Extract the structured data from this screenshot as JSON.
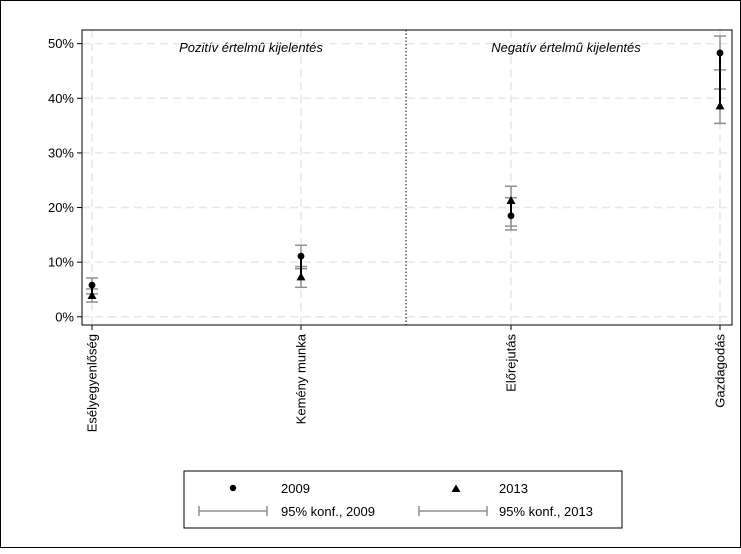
{
  "chart_data": {
    "type": "scatter",
    "categories": [
      "Esélyegyenlőség",
      "Kemény munka",
      "Előrejutás",
      "Gazdagodás"
    ],
    "panels": [
      {
        "label": "Pozitív értelmû kijelentés",
        "categories": [
          "Esélyegyenlőség",
          "Kemény munka"
        ]
      },
      {
        "label": "Negatív értelmû kijelentés",
        "categories": [
          "Előrejutás",
          "Gazdagodás"
        ]
      }
    ],
    "series": [
      {
        "name": "2009",
        "marker": "circle",
        "values": [
          5.8,
          11.1,
          18.5,
          48.3
        ],
        "ci_low": [
          4.2,
          8.8,
          16.6,
          45.2
        ],
        "ci_high": [
          7.1,
          13.1,
          21.8,
          51.4
        ]
      },
      {
        "name": "2013",
        "marker": "triangle",
        "values": [
          3.9,
          7.3,
          21.3,
          38.6
        ],
        "ci_low": [
          2.7,
          5.4,
          15.9,
          35.4
        ],
        "ci_high": [
          5.1,
          9.2,
          23.9,
          41.7
        ]
      }
    ],
    "ci_legend": [
      "95% konf., 2009",
      "95% konf., 2013"
    ],
    "yticks": [
      "0%",
      "10%",
      "20%",
      "30%",
      "40%",
      "50%"
    ],
    "ylim": [
      -1.5,
      52.5
    ],
    "grid": true,
    "legend_position": "bottom",
    "colors": {
      "marker": "#000000",
      "ci": "#909090",
      "grid": "#e6e6e6"
    }
  }
}
